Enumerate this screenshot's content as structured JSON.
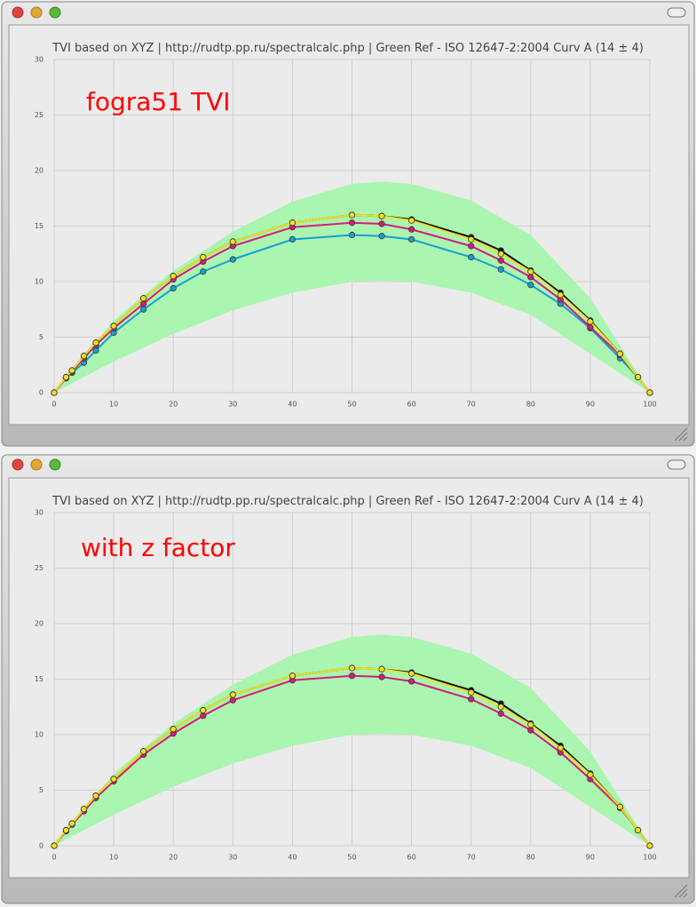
{
  "chart_data": [
    {
      "type": "line",
      "title": "TVI based on XYZ | http://rudtp.pp.ru/spectralcalc.php | Green Ref - ISO 12647-2:2004 Curv A (14 ± 4)",
      "annotation": "fogra51 TVI",
      "annotation_color": "#ff0000",
      "x": [
        0,
        2,
        3,
        5,
        7,
        10,
        15,
        20,
        25,
        30,
        40,
        50,
        55,
        60,
        70,
        75,
        80,
        85,
        90,
        95,
        98,
        100
      ],
      "xlim": [
        0,
        100
      ],
      "ylim": [
        0,
        30
      ],
      "xticks": [
        0,
        10,
        20,
        30,
        40,
        50,
        60,
        70,
        80,
        90,
        100
      ],
      "yticks": [
        0,
        5,
        10,
        15,
        20,
        25,
        30
      ],
      "grid": true,
      "band": {
        "color": "#aaf5b0",
        "x": [
          0,
          10,
          20,
          30,
          40,
          50,
          55,
          60,
          70,
          80,
          90,
          100
        ],
        "upper": [
          0,
          6.5,
          11,
          14.5,
          17.2,
          18.8,
          19.0,
          18.8,
          17.3,
          14.2,
          8.5,
          0
        ],
        "lower": [
          0,
          2.8,
          5.3,
          7.4,
          9.0,
          10.0,
          10.1,
          10.0,
          9.0,
          7.0,
          3.5,
          0
        ]
      },
      "series": [
        {
          "color": "#1a9fd0",
          "values": [
            0,
            1.3,
            1.8,
            2.7,
            3.8,
            5.4,
            7.5,
            9.4,
            10.9,
            12.0,
            13.8,
            14.2,
            14.1,
            13.8,
            12.2,
            11.1,
            9.7,
            8.0,
            5.8,
            3.1,
            1.4,
            0
          ]
        },
        {
          "color": "#d81b7a",
          "values": [
            0,
            1.3,
            1.9,
            3.1,
            4.3,
            5.8,
            8.0,
            10.2,
            11.8,
            13.2,
            14.9,
            15.3,
            15.2,
            14.7,
            13.2,
            11.9,
            10.4,
            8.4,
            5.9,
            3.4,
            1.4,
            0
          ]
        },
        {
          "color": "#111111",
          "values": [
            0,
            1.4,
            2.0,
            3.3,
            4.5,
            6.0,
            8.5,
            10.5,
            12.2,
            13.6,
            15.3,
            16.0,
            15.9,
            15.6,
            14.0,
            12.8,
            11.0,
            9.0,
            6.5,
            3.5,
            1.4,
            0
          ]
        },
        {
          "color": "#f0e020",
          "values": [
            0,
            1.4,
            2.0,
            3.3,
            4.5,
            6.0,
            8.5,
            10.5,
            12.2,
            13.6,
            15.3,
            16.0,
            15.9,
            15.5,
            13.8,
            12.5,
            10.9,
            8.8,
            6.4,
            3.5,
            1.4,
            0
          ]
        }
      ]
    },
    {
      "type": "line",
      "title": "TVI based on XYZ | http://rudtp.pp.ru/spectralcalc.php | Green Ref - ISO 12647-2:2004 Curv A (14 ± 4)",
      "annotation": "with z factor",
      "annotation_color": "#ff0000",
      "x": [
        0,
        2,
        3,
        5,
        7,
        10,
        15,
        20,
        25,
        30,
        40,
        50,
        55,
        60,
        70,
        75,
        80,
        85,
        90,
        95,
        98,
        100
      ],
      "xlim": [
        0,
        100
      ],
      "ylim": [
        0,
        30
      ],
      "xticks": [
        0,
        10,
        20,
        30,
        40,
        50,
        60,
        70,
        80,
        90,
        100
      ],
      "yticks": [
        0,
        5,
        10,
        15,
        20,
        25,
        30
      ],
      "grid": true,
      "band": {
        "color": "#aaf5b0",
        "x": [
          0,
          10,
          20,
          30,
          40,
          50,
          55,
          60,
          70,
          80,
          90,
          100
        ],
        "upper": [
          0,
          6.5,
          11,
          14.5,
          17.2,
          18.8,
          19.0,
          18.8,
          17.3,
          14.2,
          8.5,
          0
        ],
        "lower": [
          0,
          2.8,
          5.3,
          7.4,
          9.0,
          10.0,
          10.1,
          10.0,
          9.0,
          7.0,
          3.5,
          0
        ]
      },
      "series": [
        {
          "color": "#d81b7a",
          "values": [
            0,
            1.3,
            1.9,
            3.1,
            4.3,
            5.8,
            8.2,
            10.1,
            11.7,
            13.1,
            14.9,
            15.3,
            15.2,
            14.8,
            13.2,
            11.9,
            10.4,
            8.4,
            6.0,
            3.4,
            1.4,
            0
          ]
        },
        {
          "color": "#111111",
          "values": [
            0,
            1.4,
            2.0,
            3.3,
            4.5,
            6.0,
            8.5,
            10.5,
            12.2,
            13.6,
            15.3,
            16.0,
            15.9,
            15.6,
            14.0,
            12.8,
            11.0,
            9.0,
            6.5,
            3.5,
            1.4,
            0
          ]
        },
        {
          "color": "#f0e020",
          "values": [
            0,
            1.4,
            2.0,
            3.3,
            4.5,
            6.0,
            8.5,
            10.5,
            12.2,
            13.6,
            15.3,
            16.0,
            15.9,
            15.5,
            13.8,
            12.5,
            10.9,
            8.8,
            6.4,
            3.5,
            1.4,
            0
          ]
        }
      ]
    }
  ]
}
